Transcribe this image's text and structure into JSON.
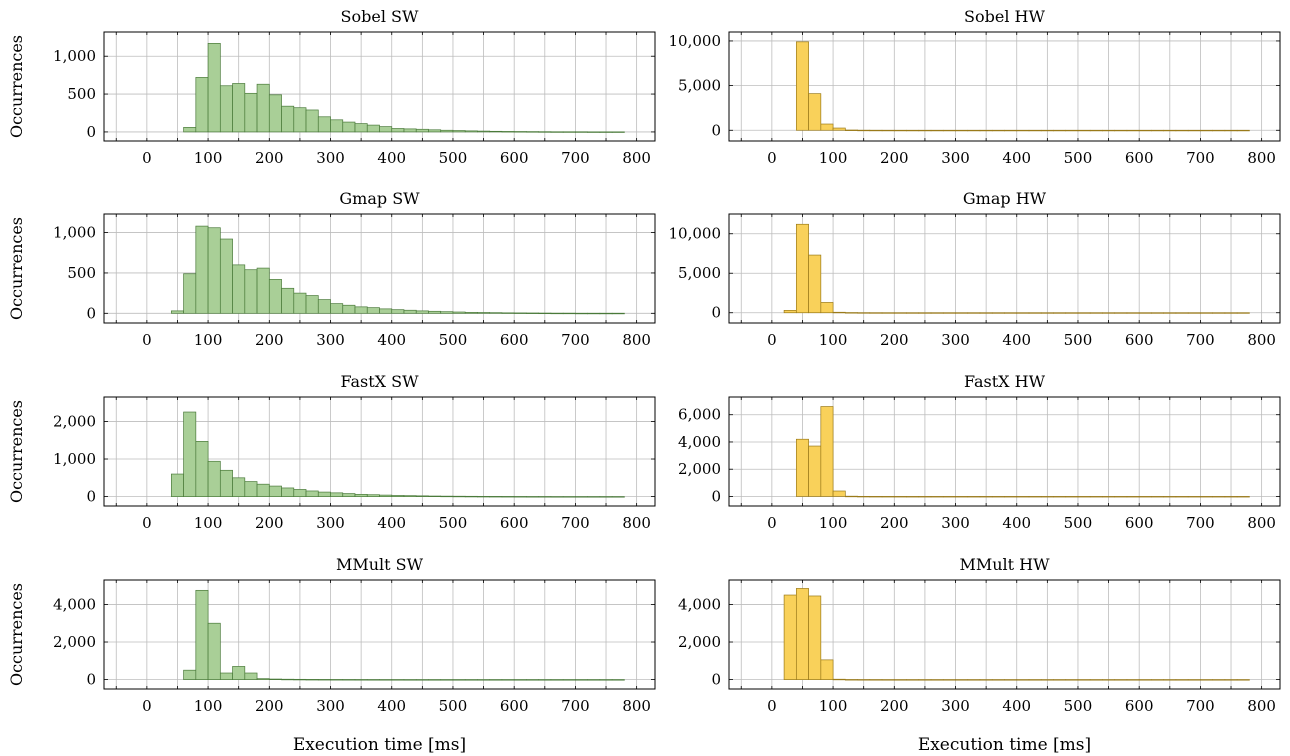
{
  "figure": {
    "y_axis_label": "Occurrences",
    "x_axis_label": "Execution time [ms]",
    "colors": {
      "sw_fill": "#a9cf97",
      "sw_stroke": "#4a7a3a",
      "hw_fill": "#f9d15a",
      "hw_stroke": "#9a7a1a",
      "grid": "#bdbdbd"
    }
  },
  "chart_data": [
    {
      "type": "bar",
      "title": "Sobel SW",
      "ylabel": "Occurrences",
      "xlabel": "",
      "xlim": [
        -70,
        830
      ],
      "ylim": [
        -120,
        1320
      ],
      "grid": true,
      "xticks": [
        0,
        100,
        200,
        300,
        400,
        500,
        600,
        700,
        800
      ],
      "yticks": [
        0,
        500,
        1000
      ],
      "ytick_labels": [
        "0",
        "500",
        "1,000"
      ],
      "bin_start": 60,
      "bin_width": 20,
      "values": [
        60,
        720,
        1170,
        610,
        640,
        510,
        630,
        490,
        340,
        320,
        290,
        200,
        160,
        130,
        110,
        90,
        70,
        45,
        40,
        35,
        28,
        22,
        18,
        14,
        11,
        8,
        6,
        5,
        4,
        3,
        2,
        2,
        2,
        1,
        1,
        1
      ]
    },
    {
      "type": "bar",
      "title": "Sobel HW",
      "ylabel": "",
      "xlabel": "",
      "xlim": [
        -70,
        830
      ],
      "ylim": [
        -1200,
        11000
      ],
      "grid": true,
      "xticks": [
        0,
        100,
        200,
        300,
        400,
        500,
        600,
        700,
        800
      ],
      "yticks": [
        0,
        5000,
        10000
      ],
      "ytick_labels": [
        "0",
        "5,000",
        "10,000"
      ],
      "bin_start": 40,
      "bin_width": 20,
      "values": [
        9900,
        4100,
        700,
        250,
        30,
        10,
        5,
        3,
        2,
        1,
        1,
        1,
        1,
        1,
        1,
        1,
        1,
        1,
        1,
        1,
        1,
        1,
        1,
        1,
        1,
        1,
        1,
        1,
        1,
        1,
        1,
        1,
        1,
        1,
        1,
        1,
        1
      ]
    },
    {
      "type": "bar",
      "title": "Gmap SW",
      "ylabel": "Occurrences",
      "xlabel": "",
      "xlim": [
        -70,
        830
      ],
      "ylim": [
        -120,
        1230
      ],
      "grid": true,
      "xticks": [
        0,
        100,
        200,
        300,
        400,
        500,
        600,
        700,
        800
      ],
      "yticks": [
        0,
        500,
        1000
      ],
      "ytick_labels": [
        "0",
        "500",
        "1,000"
      ],
      "bin_start": 40,
      "bin_width": 20,
      "values": [
        30,
        490,
        1080,
        1060,
        920,
        600,
        540,
        560,
        420,
        310,
        250,
        220,
        170,
        120,
        100,
        80,
        70,
        55,
        45,
        38,
        30,
        25,
        20,
        16,
        12,
        10,
        8,
        6,
        5,
        4,
        3,
        2,
        2,
        1,
        1,
        1,
        1
      ]
    },
    {
      "type": "bar",
      "title": "Gmap HW",
      "ylabel": "",
      "xlabel": "",
      "xlim": [
        -70,
        830
      ],
      "ylim": [
        -1300,
        12500
      ],
      "grid": true,
      "xticks": [
        0,
        100,
        200,
        300,
        400,
        500,
        600,
        700,
        800
      ],
      "yticks": [
        0,
        5000,
        10000
      ],
      "ytick_labels": [
        "0",
        "5,000",
        "10,000"
      ],
      "bin_start": 20,
      "bin_width": 20,
      "values": [
        300,
        11200,
        7300,
        1300,
        60,
        20,
        8,
        4,
        3,
        2,
        1,
        1,
        1,
        1,
        1,
        1,
        1,
        1,
        1,
        1,
        1,
        1,
        1,
        1,
        1,
        1,
        1,
        1,
        1,
        1,
        1,
        1,
        1,
        1,
        1,
        1,
        1,
        1
      ]
    },
    {
      "type": "bar",
      "title": "FastX SW",
      "ylabel": "Occurrences",
      "xlabel": "",
      "xlim": [
        -70,
        830
      ],
      "ylim": [
        -250,
        2650
      ],
      "grid": true,
      "xticks": [
        0,
        100,
        200,
        300,
        400,
        500,
        600,
        700,
        800
      ],
      "yticks": [
        0,
        1000,
        2000
      ],
      "ytick_labels": [
        "0",
        "1,000",
        "2,000"
      ],
      "bin_start": 40,
      "bin_width": 20,
      "values": [
        600,
        2250,
        1470,
        940,
        700,
        500,
        400,
        330,
        280,
        230,
        190,
        150,
        120,
        100,
        80,
        60,
        50,
        40,
        30,
        25,
        20,
        15,
        12,
        10,
        8,
        6,
        5,
        4,
        3,
        2,
        2,
        1,
        1,
        1,
        1,
        1,
        1
      ]
    },
    {
      "type": "bar",
      "title": "FastX HW",
      "ylabel": "",
      "xlabel": "",
      "xlim": [
        -70,
        830
      ],
      "ylim": [
        -700,
        7300
      ],
      "grid": true,
      "xticks": [
        0,
        100,
        200,
        300,
        400,
        500,
        600,
        700,
        800
      ],
      "yticks": [
        0,
        2000,
        4000,
        6000
      ],
      "ytick_labels": [
        "0",
        "2,000",
        "4,000",
        "6,000"
      ],
      "bin_start": 40,
      "bin_width": 20,
      "values": [
        4200,
        3700,
        6600,
        400,
        20,
        8,
        4,
        3,
        2,
        1,
        1,
        1,
        1,
        1,
        1,
        1,
        1,
        1,
        1,
        1,
        1,
        1,
        1,
        1,
        1,
        1,
        1,
        1,
        1,
        1,
        1,
        1,
        1,
        1,
        1,
        1,
        1
      ]
    },
    {
      "type": "bar",
      "title": "MMult SW",
      "ylabel": "Occurrences",
      "xlabel": "Execution time [ms]",
      "xlim": [
        -70,
        830
      ],
      "ylim": [
        -500,
        5300
      ],
      "grid": true,
      "xticks": [
        0,
        100,
        200,
        300,
        400,
        500,
        600,
        700,
        800
      ],
      "yticks": [
        0,
        2000,
        4000
      ],
      "ytick_labels": [
        "0",
        "2,000",
        "4,000"
      ],
      "bin_start": 60,
      "bin_width": 20,
      "values": [
        500,
        4750,
        3000,
        350,
        700,
        350,
        50,
        30,
        20,
        15,
        10,
        8,
        6,
        5,
        4,
        3,
        2,
        2,
        1,
        1,
        1,
        1,
        1,
        1,
        1,
        1,
        1,
        1,
        1,
        1,
        1,
        1,
        1,
        1,
        1,
        1
      ]
    },
    {
      "type": "bar",
      "title": "MMult HW",
      "ylabel": "",
      "xlabel": "Execution time [ms]",
      "xlim": [
        -70,
        830
      ],
      "ylim": [
        -500,
        5300
      ],
      "grid": true,
      "xticks": [
        0,
        100,
        200,
        300,
        400,
        500,
        600,
        700,
        800
      ],
      "yticks": [
        0,
        2000,
        4000
      ],
      "ytick_labels": [
        "0",
        "2,000",
        "4,000"
      ],
      "bin_start": 20,
      "bin_width": 20,
      "values": [
        4500,
        4850,
        4450,
        1050,
        20,
        5,
        3,
        2,
        1,
        1,
        1,
        1,
        1,
        1,
        1,
        1,
        1,
        1,
        1,
        1,
        1,
        1,
        1,
        1,
        1,
        1,
        1,
        1,
        1,
        1,
        1,
        1,
        1,
        1,
        1,
        1,
        1,
        1
      ]
    }
  ]
}
